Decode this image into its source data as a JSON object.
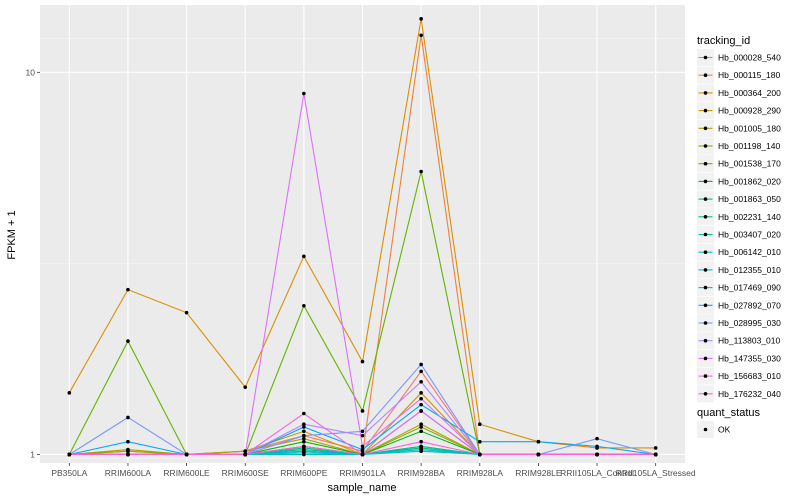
{
  "chart_data": {
    "type": "line",
    "xlabel": "sample_name",
    "ylabel": "FPKM + 1",
    "y_scale": "log",
    "ylim": [
      0.95,
      15
    ],
    "y_ticks": [
      1,
      10
    ],
    "y_tick_labels": [
      "1",
      "10"
    ],
    "grid": true,
    "legend_placement": "right",
    "categories": [
      "PB350LA",
      "RRIM600LA",
      "RRIM600LE",
      "RRIM600SE",
      "RRIM600PE",
      "RRIM901LA",
      "RRIM928BA",
      "RRIM928LA",
      "RRIM928LE",
      "RRII105LA_Control",
      "RRII105LA_Stressed"
    ],
    "legend": {
      "title": "tracking_id",
      "shape_title": "quant_status",
      "shape_label": "OK"
    },
    "series": [
      {
        "name": "Hb_000028_540",
        "color": "#F8766D",
        "values": [
          1.0,
          1.02,
          1.0,
          1.02,
          1.12,
          1.02,
          1.65,
          1.0,
          1.0,
          1.0,
          1.0
        ]
      },
      {
        "name": "Hb_000115_180",
        "color": "#EC823C",
        "values": [
          1.0,
          1.0,
          1.0,
          1.0,
          1.05,
          1.0,
          12.5,
          1.0,
          1.0,
          1.0,
          1.0
        ]
      },
      {
        "name": "Hb_000364_200",
        "color": "#DB8E00",
        "values": [
          1.45,
          2.7,
          2.35,
          1.5,
          3.3,
          1.75,
          13.8,
          1.2,
          1.08,
          1.04,
          1.04
        ]
      },
      {
        "name": "Hb_000928_290",
        "color": "#C79800",
        "values": [
          1.0,
          1.0,
          1.0,
          1.02,
          1.15,
          1.0,
          1.45,
          1.0,
          1.0,
          1.0,
          1.0
        ]
      },
      {
        "name": "Hb_001005_180",
        "color": "#AEA200",
        "values": [
          1.0,
          1.03,
          1.0,
          1.02,
          1.1,
          1.0,
          1.2,
          1.0,
          1.0,
          1.0,
          1.0
        ]
      },
      {
        "name": "Hb_001198_140",
        "color": "#8FAA00",
        "values": [
          1.0,
          1.02,
          1.0,
          1.0,
          1.05,
          1.0,
          1.18,
          1.0,
          1.0,
          1.0,
          1.0
        ]
      },
      {
        "name": "Hb_001538_170",
        "color": "#64B200",
        "values": [
          1.0,
          1.98,
          1.0,
          1.0,
          2.45,
          1.3,
          5.5,
          1.0,
          1.0,
          1.0,
          1.0
        ]
      },
      {
        "name": "Hb_001862_020",
        "color": "#00B712",
        "values": [
          1.0,
          1.0,
          1.0,
          1.0,
          1.08,
          1.0,
          1.15,
          1.0,
          1.0,
          1.0,
          1.0
        ]
      },
      {
        "name": "Hb_001863_050",
        "color": "#00BC56",
        "values": [
          1.0,
          1.0,
          1.0,
          1.0,
          1.02,
          1.0,
          1.05,
          1.0,
          1.0,
          1.0,
          1.0
        ]
      },
      {
        "name": "Hb_002231_140",
        "color": "#00BF7D",
        "values": [
          1.0,
          1.0,
          1.0,
          1.0,
          1.03,
          1.0,
          1.04,
          1.0,
          1.0,
          1.0,
          1.0
        ]
      },
      {
        "name": "Hb_003407_020",
        "color": "#00C19F",
        "values": [
          1.0,
          1.0,
          1.0,
          1.0,
          1.04,
          1.0,
          1.05,
          1.0,
          1.0,
          1.0,
          1.0
        ]
      },
      {
        "name": "Hb_006142_010",
        "color": "#00C0BB",
        "values": [
          1.0,
          1.0,
          1.0,
          1.0,
          1.0,
          1.0,
          1.02,
          1.0,
          1.0,
          1.0,
          1.0
        ]
      },
      {
        "name": "Hb_012355_010",
        "color": "#00BCD6",
        "values": [
          1.0,
          1.0,
          1.0,
          1.0,
          1.01,
          1.0,
          1.03,
          1.0,
          1.0,
          1.0,
          1.0
        ]
      },
      {
        "name": "Hb_017469_090",
        "color": "#00B5EE",
        "values": [
          1.0,
          1.0,
          1.0,
          1.0,
          1.02,
          1.0,
          1.3,
          1.0,
          1.0,
          1.0,
          1.0
        ]
      },
      {
        "name": "Hb_027892_070",
        "color": "#00A9FF",
        "values": [
          1.0,
          1.08,
          1.0,
          1.0,
          1.18,
          1.03,
          1.35,
          1.08,
          1.08,
          1.05,
          1.0
        ]
      },
      {
        "name": "Hb_028995_030",
        "color": "#7997FF",
        "values": [
          1.0,
          1.25,
          1.0,
          1.0,
          1.12,
          1.15,
          1.72,
          1.0,
          1.0,
          1.1,
          1.0
        ]
      },
      {
        "name": "Hb_113803_010",
        "color": "#B385FF",
        "values": [
          1.0,
          1.0,
          1.0,
          1.0,
          1.2,
          1.12,
          1.55,
          1.0,
          1.0,
          1.0,
          1.0
        ]
      },
      {
        "name": "Hb_147355_030",
        "color": "#DC71FA",
        "values": [
          1.0,
          1.0,
          1.0,
          1.0,
          8.8,
          1.05,
          1.4,
          1.0,
          1.0,
          1.0,
          1.0
        ]
      },
      {
        "name": "Hb_156683_010",
        "color": "#EF67EB",
        "values": [
          1.0,
          1.0,
          1.0,
          1.0,
          1.28,
          1.0,
          1.3,
          1.0,
          1.0,
          1.0,
          1.0
        ]
      },
      {
        "name": "Hb_176232_040",
        "color": "#FB61D7",
        "values": [
          1.0,
          1.0,
          1.0,
          1.0,
          1.05,
          1.0,
          1.08,
          1.0,
          1.0,
          1.0,
          1.0
        ]
      }
    ]
  }
}
